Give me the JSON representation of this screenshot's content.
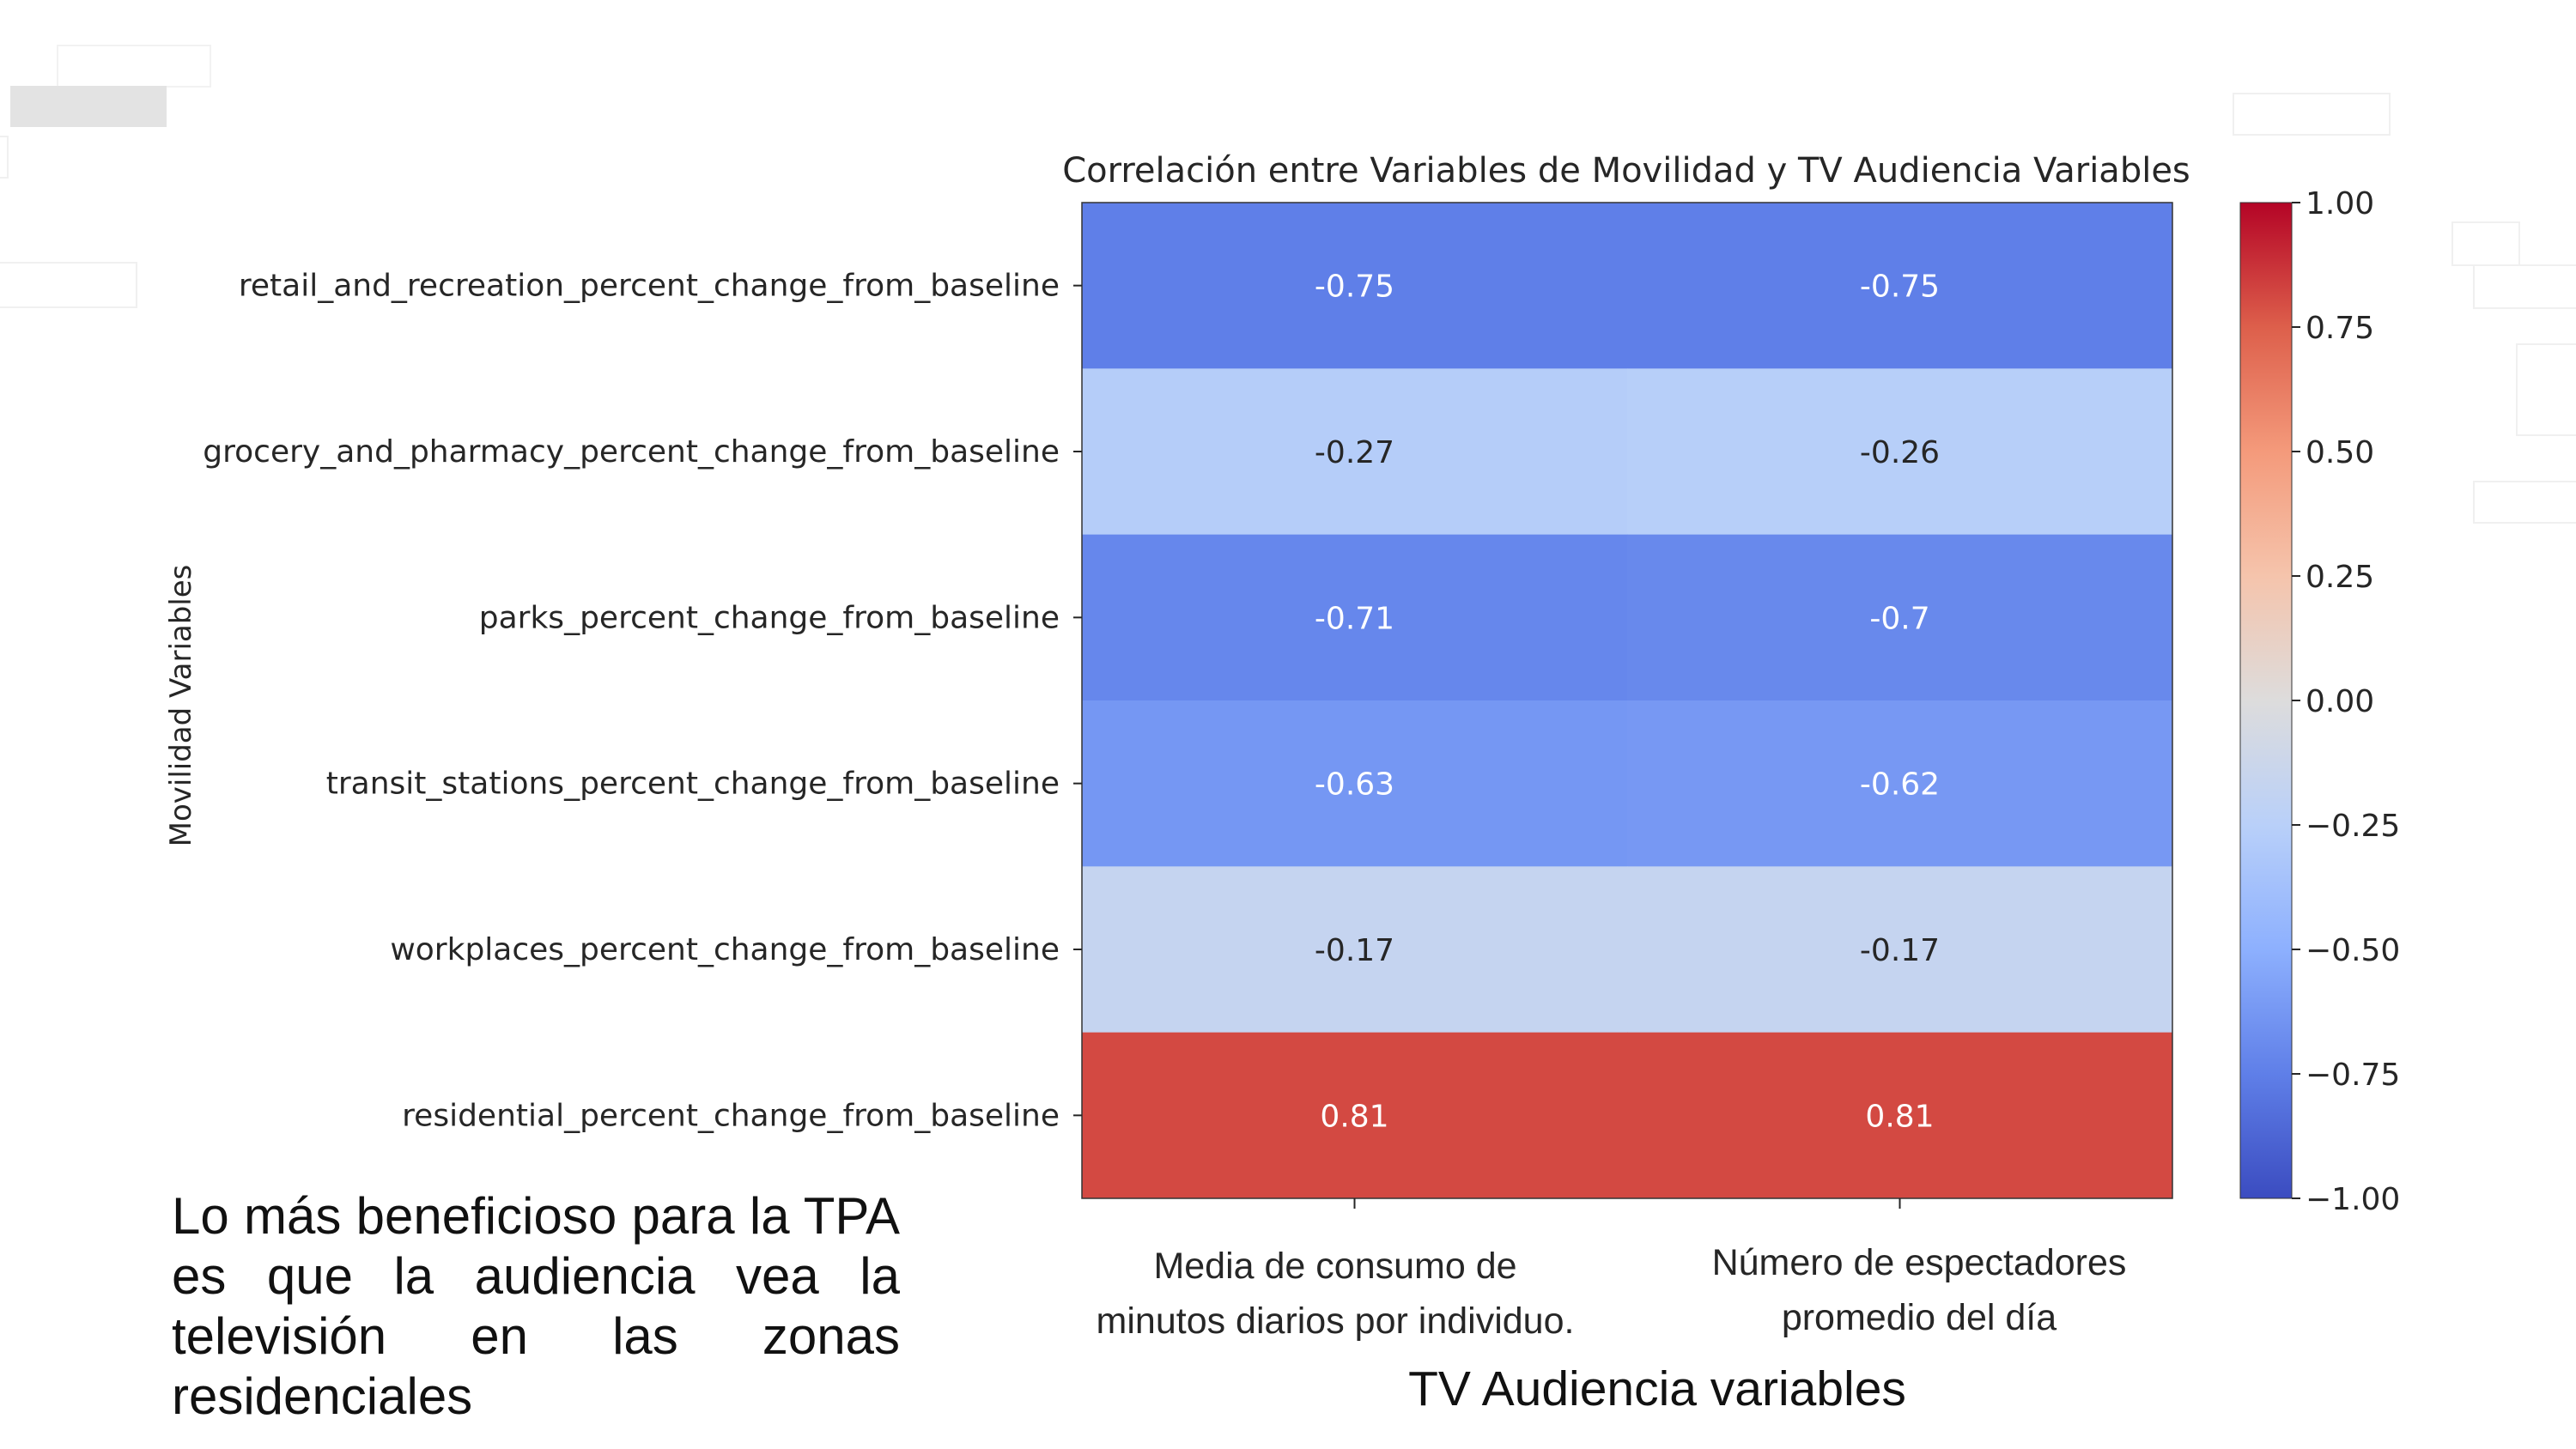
{
  "note_text": "Lo más beneficioso para la TPA es que la audiencia vea la televisión en las zonas residenciales",
  "chart_data": {
    "type": "heatmap",
    "title": "Correlación entre Variables de Movilidad y TV Audiencia Variables",
    "ylabel": "Movilidad Variables",
    "xlabel": "TV Audiencia variables",
    "rows": [
      "retail_and_recreation_percent_change_from_baseline",
      "grocery_and_pharmacy_percent_change_from_baseline",
      "parks_percent_change_from_baseline",
      "transit_stations_percent_change_from_baseline",
      "workplaces_percent_change_from_baseline",
      "residential_percent_change_from_baseline"
    ],
    "columns": [
      "Media de consumo de minutos diarios por individuo.",
      "Número de espectadores promedio del día"
    ],
    "values": [
      [
        -0.75,
        -0.75
      ],
      [
        -0.27,
        -0.26
      ],
      [
        -0.71,
        -0.7
      ],
      [
        -0.63,
        -0.62
      ],
      [
        -0.17,
        -0.17
      ],
      [
        0.81,
        0.81
      ]
    ],
    "value_labels": [
      [
        "-0.75",
        "-0.75"
      ],
      [
        "-0.27",
        "-0.26"
      ],
      [
        "-0.71",
        "-0.7"
      ],
      [
        "-0.63",
        "-0.62"
      ],
      [
        "-0.17",
        "-0.17"
      ],
      [
        "0.81",
        "0.81"
      ]
    ],
    "colormap": "coolwarm",
    "vmin": -1,
    "vmax": 1,
    "colorbar_ticks": [
      1.0,
      0.75,
      0.5,
      0.25,
      0.0,
      -0.25,
      -0.5,
      -0.75,
      -1.0
    ],
    "colorbar_tick_labels": [
      "1.00",
      "0.75",
      "0.50",
      "0.25",
      "0.00",
      "−0.25",
      "−0.50",
      "−0.75",
      "−1.00"
    ],
    "grid": false
  }
}
